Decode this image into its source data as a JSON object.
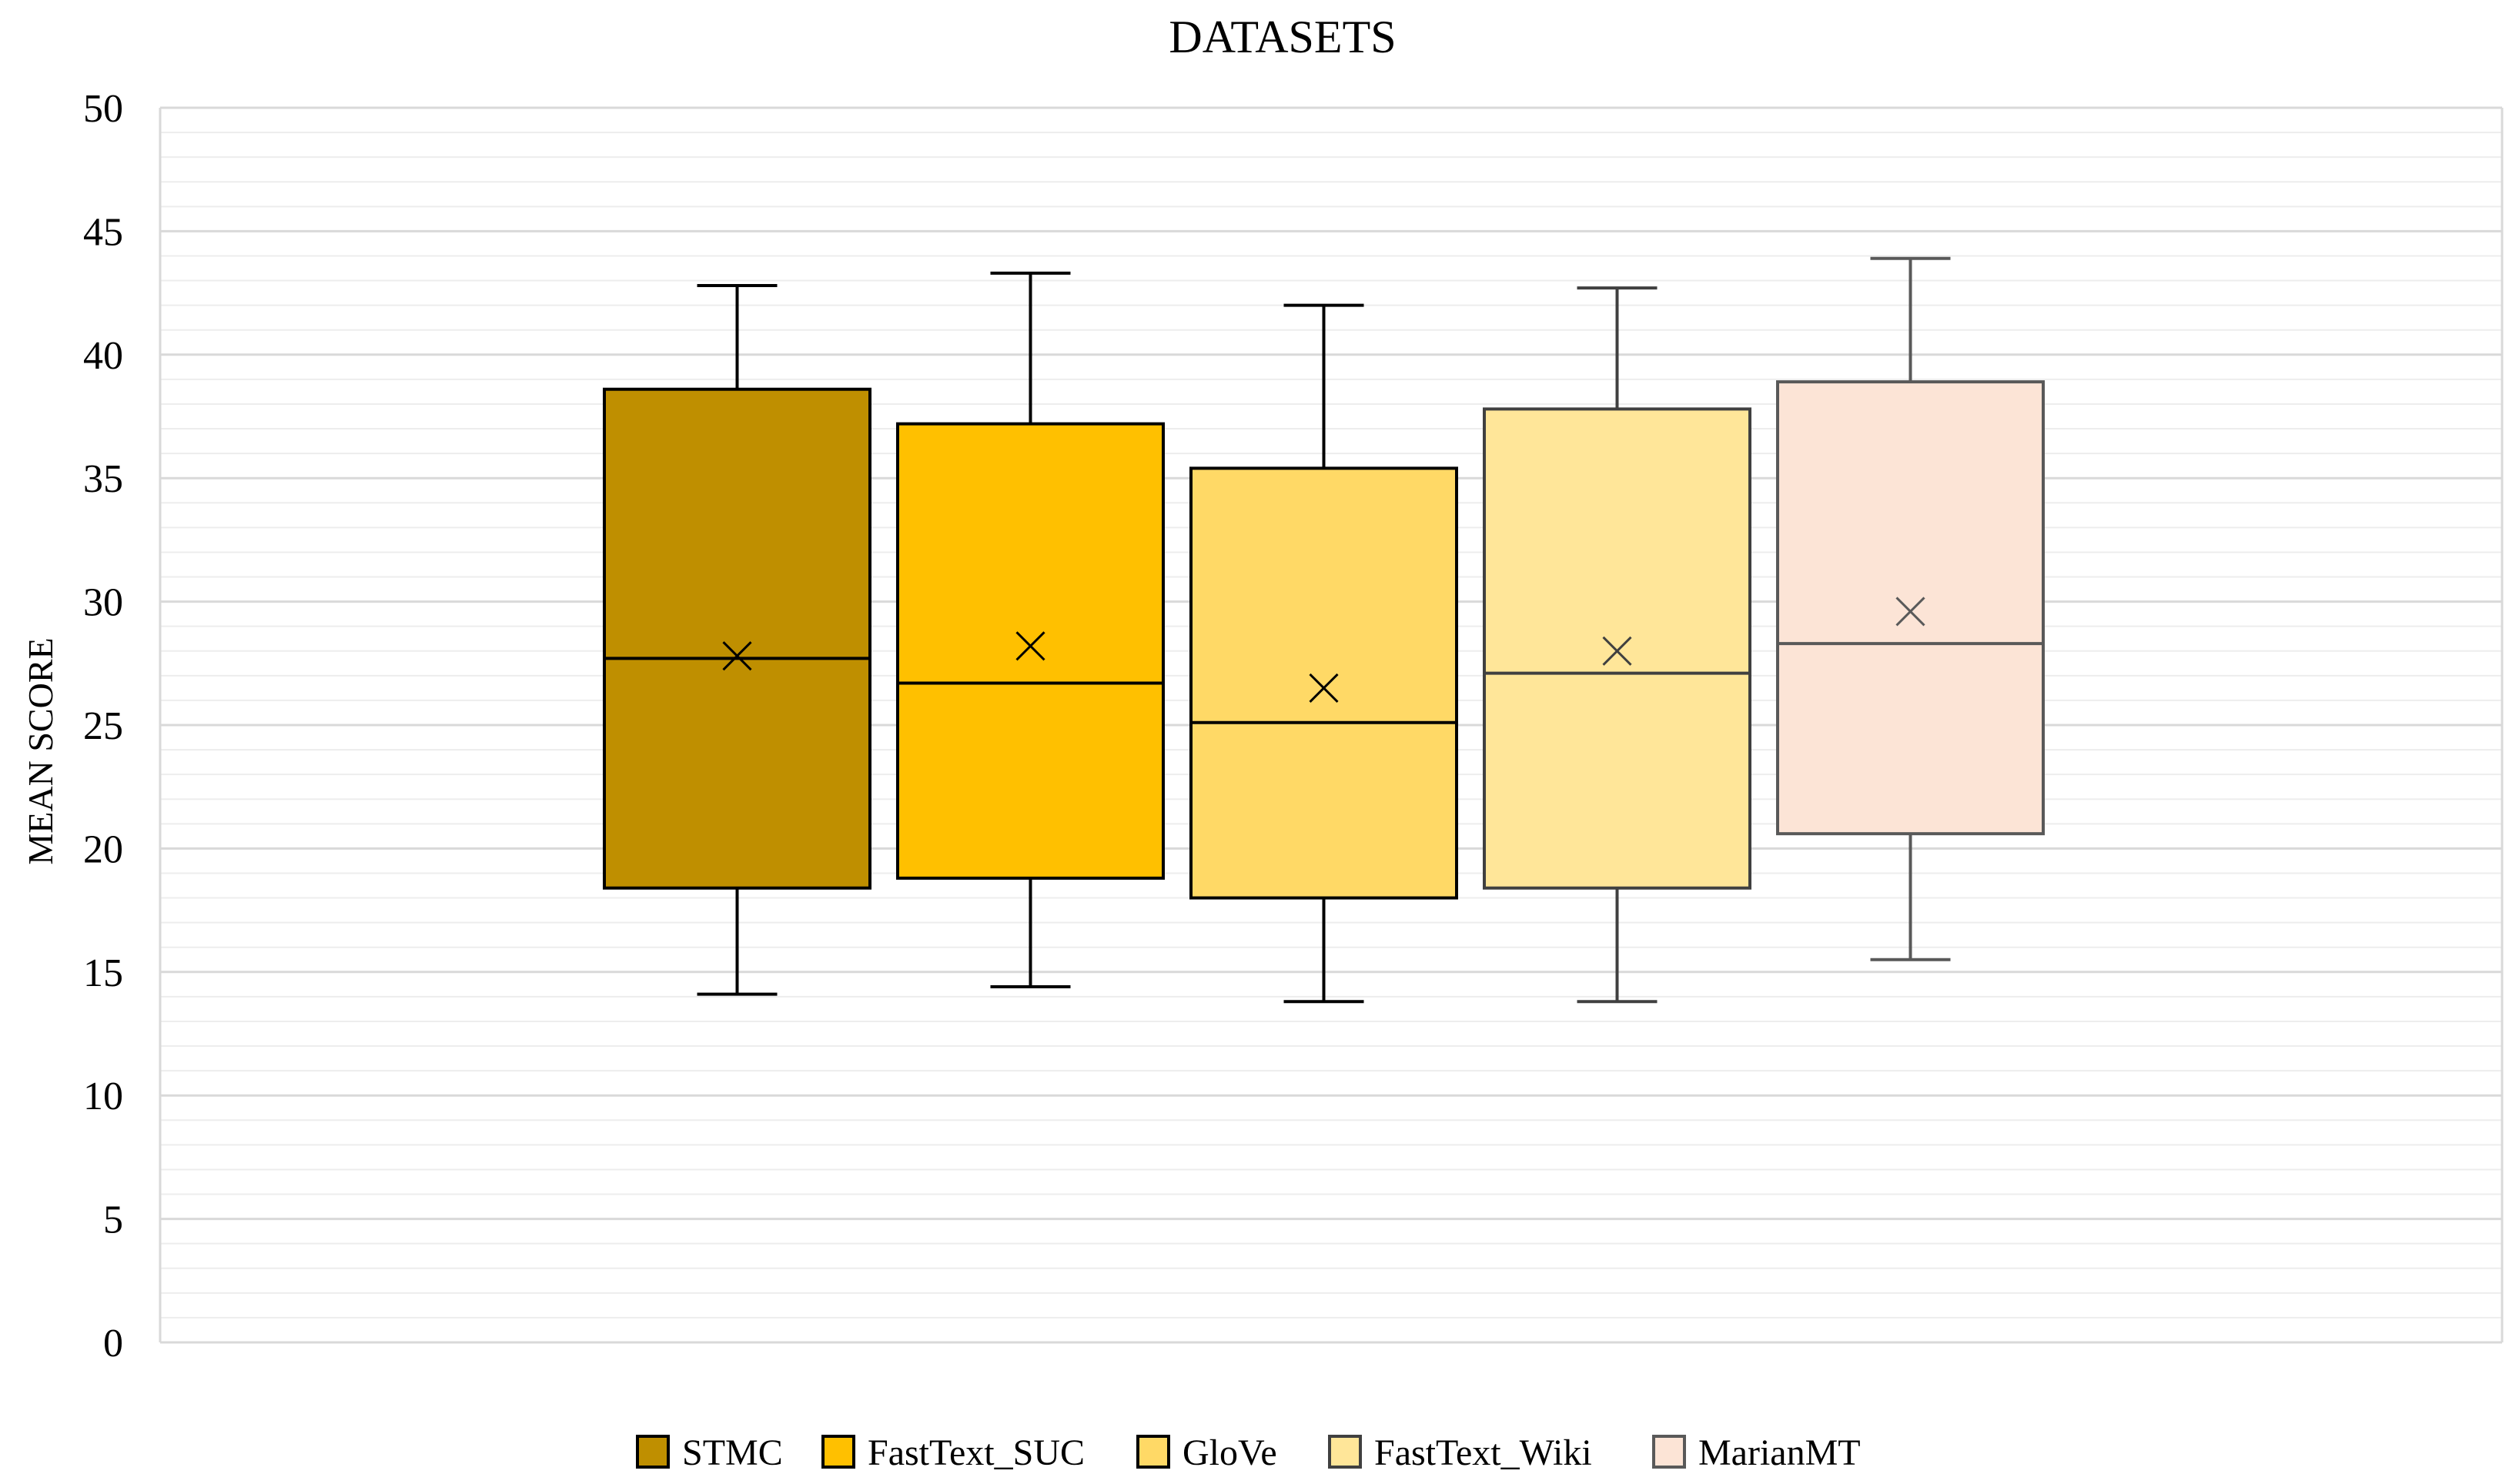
{
  "chart_data": {
    "type": "box",
    "title": "DATASETS",
    "xlabel": "",
    "ylabel": "MEAN SCORE",
    "ylim": [
      0,
      50
    ],
    "yticks": [
      "0",
      "5",
      "10",
      "15",
      "20",
      "25",
      "30",
      "35",
      "40",
      "45",
      "50"
    ],
    "grid": "horizontal, major every 5, minor every 1",
    "legend_position": "bottom",
    "series": [
      {
        "name": "STMC",
        "color": "#BF8F00",
        "stroke": "#000000",
        "whisker_low": 14.1,
        "q1": 18.4,
        "median": 27.7,
        "q3": 38.6,
        "whisker_high": 42.8,
        "mean": 27.8
      },
      {
        "name": "FastText_SUC",
        "color": "#FFC000",
        "stroke": "#000000",
        "whisker_low": 14.4,
        "q1": 18.8,
        "median": 26.7,
        "q3": 37.2,
        "whisker_high": 43.3,
        "mean": 28.2
      },
      {
        "name": "GloVe",
        "color": "#FFD966",
        "stroke": "#000000",
        "whisker_low": 13.8,
        "q1": 18.0,
        "median": 25.1,
        "q3": 35.4,
        "whisker_high": 42.0,
        "mean": 26.5
      },
      {
        "name": "FastText_Wiki",
        "color": "#FFE699",
        "stroke": "#404040",
        "whisker_low": 13.8,
        "q1": 18.4,
        "median": 27.1,
        "q3": 37.8,
        "whisker_high": 42.7,
        "mean": 28.0
      },
      {
        "name": "MarianMT",
        "color": "#FCE4D6",
        "stroke": "#595959",
        "whisker_low": 15.5,
        "q1": 20.6,
        "median": 28.3,
        "q3": 38.9,
        "whisker_high": 43.9,
        "mean": 29.6
      }
    ]
  }
}
